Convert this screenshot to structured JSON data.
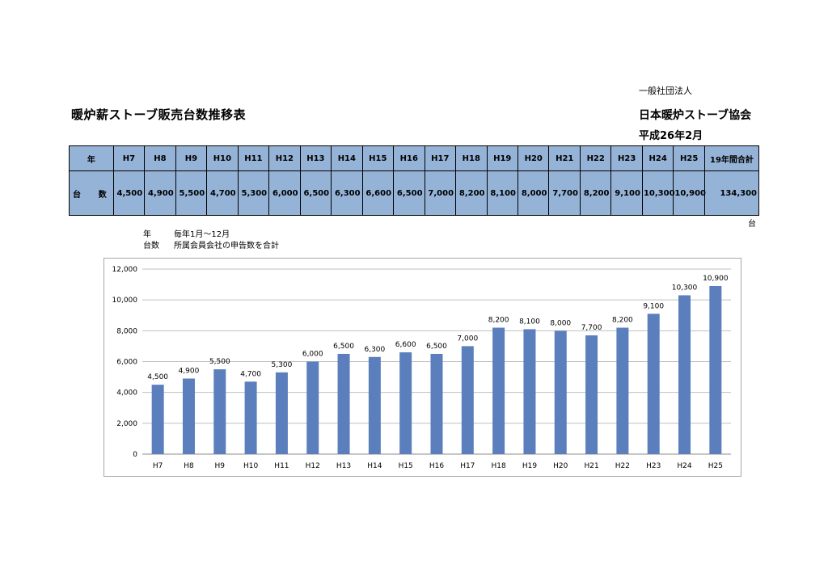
{
  "header": {
    "org_type": "一般社団法人",
    "title": "暖炉薪ストーブ販売台数推移表",
    "association": "日本暖炉ストーブ協会",
    "date": "平成26年2月"
  },
  "table": {
    "year_label": "年",
    "count_label_1": "台",
    "count_label_2": "数",
    "years": [
      "H7",
      "H8",
      "H9",
      "H10",
      "H11",
      "H12",
      "H13",
      "H14",
      "H15",
      "H16",
      "H17",
      "H18",
      "H19",
      "H20",
      "H21",
      "H22",
      "H23",
      "H24",
      "H25"
    ],
    "values": [
      "4,500",
      "4,900",
      "5,500",
      "4,700",
      "5,300",
      "6,000",
      "6,500",
      "6,300",
      "6,600",
      "6,500",
      "7,000",
      "8,200",
      "8,100",
      "8,000",
      "7,700",
      "8,200",
      "9,100",
      "10,300",
      "10,900"
    ],
    "total_label": "19年間合計",
    "total_value": "134,300",
    "unit": "台"
  },
  "notes": {
    "year_key": "年",
    "year_desc": "毎年1月～12月",
    "count_key": "台数",
    "count_desc": "所属会員会社の申告数を合計"
  },
  "chart_data": {
    "type": "bar",
    "categories": [
      "H7",
      "H8",
      "H9",
      "H10",
      "H11",
      "H12",
      "H13",
      "H14",
      "H15",
      "H16",
      "H17",
      "H18",
      "H19",
      "H20",
      "H21",
      "H22",
      "H23",
      "H24",
      "H25"
    ],
    "values": [
      4500,
      4900,
      5500,
      4700,
      5300,
      6000,
      6500,
      6300,
      6600,
      6500,
      7000,
      8200,
      8100,
      8000,
      7700,
      8200,
      9100,
      10300,
      10900
    ],
    "data_labels": [
      "4,500",
      "4,900",
      "5,500",
      "4,700",
      "5,300",
      "6,000",
      "6,500",
      "6,300",
      "6,600",
      "6,500",
      "7,000",
      "8,200",
      "8,100",
      "8,000",
      "7,700",
      "8,200",
      "9,100",
      "10,300",
      "10,900"
    ],
    "yticks": [
      "0",
      "2,000",
      "4,000",
      "6,000",
      "8,000",
      "10,000",
      "12,000"
    ],
    "ylim": [
      0,
      12000
    ],
    "grid": true,
    "bar_color": "#5b7fbd",
    "title": "",
    "xlabel": "",
    "ylabel": ""
  }
}
